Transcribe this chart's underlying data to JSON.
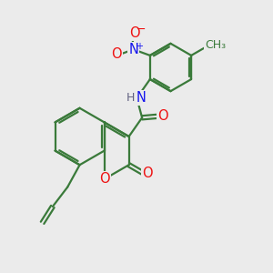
{
  "bg_color": "#ebebeb",
  "bond_color": "#3a7a3a",
  "bond_width": 1.6,
  "atom_colors": {
    "O": "#ee1111",
    "N": "#1515ee",
    "H": "#606080",
    "C": "#3a7a3a"
  },
  "font_size_atom": 10.5,
  "font_size_small": 9.0
}
